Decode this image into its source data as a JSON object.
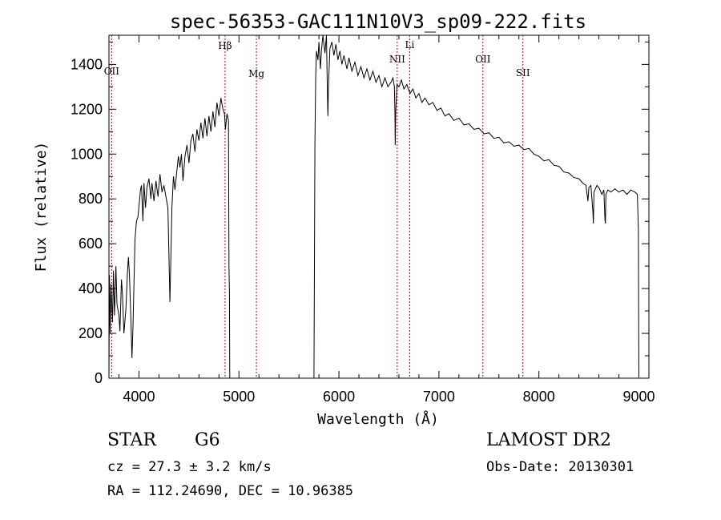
{
  "chart_data": {
    "type": "line",
    "title": "spec-56353-GAC111N10V3_sp09-222.fits",
    "xlabel": "Wavelength (Å)",
    "ylabel": "Flux (relative)",
    "xlim": [
      3700,
      9100
    ],
    "ylim": [
      0,
      1530
    ],
    "xticks": [
      4000,
      5000,
      6000,
      7000,
      8000,
      9000
    ],
    "yticks": [
      0,
      200,
      400,
      600,
      800,
      1000,
      1200,
      1400
    ],
    "grid": false,
    "series": [
      {
        "color": "#000000",
        "points": [
          [
            3700,
            0
          ],
          [
            3705,
            460
          ],
          [
            3712,
            200
          ],
          [
            3720,
            420
          ],
          [
            3735,
            250
          ],
          [
            3745,
            480
          ],
          [
            3755,
            280
          ],
          [
            3770,
            500
          ],
          [
            3780,
            330
          ],
          [
            3800,
            280
          ],
          [
            3810,
            210
          ],
          [
            3825,
            440
          ],
          [
            3835,
            380
          ],
          [
            3850,
            200
          ],
          [
            3870,
            310
          ],
          [
            3885,
            470
          ],
          [
            3895,
            540
          ],
          [
            3905,
            460
          ],
          [
            3920,
            250
          ],
          [
            3930,
            90
          ],
          [
            3940,
            230
          ],
          [
            3960,
            620
          ],
          [
            3975,
            700
          ],
          [
            3990,
            720
          ],
          [
            4005,
            790
          ],
          [
            4015,
            840
          ],
          [
            4025,
            860
          ],
          [
            4040,
            700
          ],
          [
            4050,
            870
          ],
          [
            4065,
            760
          ],
          [
            4080,
            850
          ],
          [
            4100,
            890
          ],
          [
            4120,
            800
          ],
          [
            4130,
            870
          ],
          [
            4150,
            790
          ],
          [
            4170,
            880
          ],
          [
            4190,
            810
          ],
          [
            4210,
            910
          ],
          [
            4230,
            830
          ],
          [
            4250,
            860
          ],
          [
            4270,
            810
          ],
          [
            4290,
            760
          ],
          [
            4300,
            540
          ],
          [
            4310,
            340
          ],
          [
            4320,
            560
          ],
          [
            4330,
            760
          ],
          [
            4345,
            900
          ],
          [
            4360,
            840
          ],
          [
            4380,
            930
          ],
          [
            4395,
            990
          ],
          [
            4410,
            940
          ],
          [
            4425,
            1000
          ],
          [
            4440,
            880
          ],
          [
            4460,
            990
          ],
          [
            4480,
            1040
          ],
          [
            4500,
            960
          ],
          [
            4520,
            1060
          ],
          [
            4540,
            1090
          ],
          [
            4560,
            1010
          ],
          [
            4580,
            1110
          ],
          [
            4600,
            1060
          ],
          [
            4620,
            1140
          ],
          [
            4640,
            1070
          ],
          [
            4660,
            1160
          ],
          [
            4680,
            1080
          ],
          [
            4700,
            1170
          ],
          [
            4720,
            1100
          ],
          [
            4740,
            1190
          ],
          [
            4760,
            1120
          ],
          [
            4780,
            1230
          ],
          [
            4800,
            1170
          ],
          [
            4820,
            1250
          ],
          [
            4840,
            1200
          ],
          [
            4855,
            1180
          ],
          [
            4865,
            1110
          ],
          [
            4880,
            1180
          ],
          [
            4895,
            1150
          ],
          [
            4900,
            500
          ],
          [
            4905,
            380
          ],
          [
            4908,
            0
          ],
          [
            5740,
            0
          ],
          [
            5750,
            0
          ],
          [
            5755,
            500
          ],
          [
            5760,
            1050
          ],
          [
            5768,
            1350
          ],
          [
            5775,
            1460
          ],
          [
            5790,
            1420
          ],
          [
            5800,
            1500
          ],
          [
            5815,
            1380
          ],
          [
            5825,
            1460
          ],
          [
            5840,
            1530
          ],
          [
            5860,
            1450
          ],
          [
            5875,
            1530
          ],
          [
            5885,
            1270
          ],
          [
            5890,
            1170
          ],
          [
            5895,
            1300
          ],
          [
            5910,
            1470
          ],
          [
            5930,
            1500
          ],
          [
            5950,
            1440
          ],
          [
            5970,
            1490
          ],
          [
            5990,
            1420
          ],
          [
            6010,
            1460
          ],
          [
            6030,
            1400
          ],
          [
            6050,
            1440
          ],
          [
            6080,
            1380
          ],
          [
            6100,
            1430
          ],
          [
            6130,
            1370
          ],
          [
            6160,
            1410
          ],
          [
            6190,
            1350
          ],
          [
            6220,
            1390
          ],
          [
            6250,
            1340
          ],
          [
            6280,
            1380
          ],
          [
            6310,
            1330
          ],
          [
            6340,
            1370
          ],
          [
            6370,
            1320
          ],
          [
            6400,
            1350
          ],
          [
            6430,
            1300
          ],
          [
            6460,
            1340
          ],
          [
            6490,
            1300
          ],
          [
            6520,
            1320
          ],
          [
            6540,
            1340
          ],
          [
            6555,
            1300
          ],
          [
            6560,
            1180
          ],
          [
            6563,
            1040
          ],
          [
            6568,
            1190
          ],
          [
            6580,
            1310
          ],
          [
            6600,
            1300
          ],
          [
            6625,
            1330
          ],
          [
            6650,
            1290
          ],
          [
            6680,
            1310
          ],
          [
            6710,
            1270
          ],
          [
            6740,
            1290
          ],
          [
            6770,
            1250
          ],
          [
            6800,
            1270
          ],
          [
            6830,
            1230
          ],
          [
            6860,
            1250
          ],
          [
            6900,
            1220
          ],
          [
            6940,
            1230
          ],
          [
            6980,
            1195
          ],
          [
            7020,
            1205
          ],
          [
            7060,
            1170
          ],
          [
            7100,
            1180
          ],
          [
            7150,
            1150
          ],
          [
            7200,
            1160
          ],
          [
            7250,
            1130
          ],
          [
            7300,
            1135
          ],
          [
            7350,
            1110
          ],
          [
            7400,
            1115
          ],
          [
            7450,
            1090
          ],
          [
            7500,
            1095
          ],
          [
            7550,
            1070
          ],
          [
            7600,
            1075
          ],
          [
            7650,
            1050
          ],
          [
            7700,
            1055
          ],
          [
            7750,
            1035
          ],
          [
            7800,
            1040
          ],
          [
            7850,
            1020
          ],
          [
            7900,
            1025
          ],
          [
            7950,
            1000
          ],
          [
            8000,
            990
          ],
          [
            8050,
            970
          ],
          [
            8100,
            975
          ],
          [
            8150,
            950
          ],
          [
            8200,
            945
          ],
          [
            8250,
            920
          ],
          [
            8300,
            915
          ],
          [
            8350,
            895
          ],
          [
            8400,
            890
          ],
          [
            8440,
            870
          ],
          [
            8470,
            860
          ],
          [
            8490,
            790
          ],
          [
            8500,
            850
          ],
          [
            8520,
            860
          ],
          [
            8540,
            740
          ],
          [
            8545,
            690
          ],
          [
            8550,
            830
          ],
          [
            8580,
            860
          ],
          [
            8600,
            850
          ],
          [
            8630,
            820
          ],
          [
            8650,
            840
          ],
          [
            8660,
            710
          ],
          [
            8665,
            690
          ],
          [
            8670,
            820
          ],
          [
            8690,
            840
          ],
          [
            8720,
            830
          ],
          [
            8760,
            845
          ],
          [
            8800,
            830
          ],
          [
            8840,
            840
          ],
          [
            8880,
            820
          ],
          [
            8920,
            840
          ],
          [
            8960,
            830
          ],
          [
            8985,
            820
          ],
          [
            8995,
            660
          ],
          [
            9000,
            0
          ]
        ]
      }
    ],
    "lines": [
      {
        "label": "OII",
        "x": 3727
      },
      {
        "label": "Hβ",
        "x": 4861
      },
      {
        "label": "Mg",
        "x": 5175
      },
      {
        "label": "NII",
        "x": 6583
      },
      {
        "label": "Li",
        "x": 6708
      },
      {
        "label": "OII",
        "x": 7440
      },
      {
        "label": "SII",
        "x": 7840
      }
    ],
    "line_color": "#cc0000"
  },
  "info": {
    "object_class": "STAR",
    "subclass": "G6",
    "survey": "LAMOST DR2",
    "redshift": "cz = 27.3 ± 3.2 km/s",
    "obs_date": "Obs-Date: 20130301",
    "coords": "RA = 112.24690, DEC =  10.96385"
  }
}
